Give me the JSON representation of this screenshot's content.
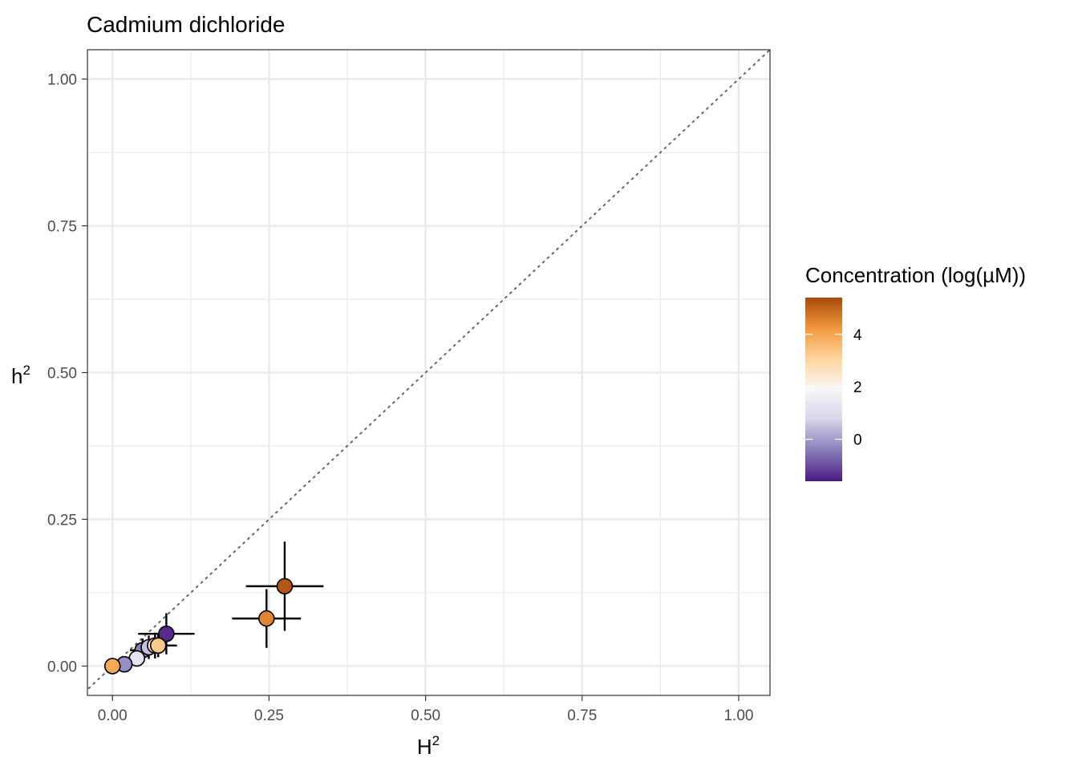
{
  "chart_data": {
    "type": "scatter",
    "title": "Cadmium dichloride",
    "xlabel": "H",
    "xlabel_sup": "2",
    "ylabel": "h",
    "ylabel_sup": "2",
    "xlim": [
      -0.04,
      1.05
    ],
    "ylim": [
      -0.05,
      1.05
    ],
    "x_ticks": [
      {
        "value": 0,
        "label": "0.00"
      },
      {
        "value": 0.25,
        "label": "0.25"
      },
      {
        "value": 0.5,
        "label": "0.50"
      },
      {
        "value": 0.75,
        "label": "0.75"
      },
      {
        "value": 1,
        "label": "1.00"
      }
    ],
    "y_ticks": [
      {
        "value": 0,
        "label": "0.00"
      },
      {
        "value": 0.25,
        "label": "0.25"
      },
      {
        "value": 0.5,
        "label": "0.50"
      },
      {
        "value": 0.75,
        "label": "0.75"
      },
      {
        "value": 1,
        "label": "1.00"
      }
    ],
    "reference_line": "y = x (dotted)",
    "grid": true,
    "points": [
      {
        "x": 0.086,
        "y": 0.055,
        "xerr": 0.045,
        "yerr": 0.035,
        "conc": -1.4
      },
      {
        "x": 0.275,
        "y": 0.136,
        "xerr": 0.062,
        "yerr": 0.076,
        "conc": 5.2
      },
      {
        "x": 0.246,
        "y": 0.081,
        "xerr": 0.055,
        "yerr": 0.05,
        "conc": 4.5
      },
      {
        "x": 0.048,
        "y": 0.027,
        "xerr": 0.02,
        "yerr": 0.02,
        "conc": -0.4
      },
      {
        "x": 0.058,
        "y": 0.032,
        "xerr": 0.022,
        "yerr": 0.02,
        "conc": 0.5
      },
      {
        "x": 0.068,
        "y": 0.035,
        "xerr": 0.03,
        "yerr": 0.022,
        "conc": 2.8
      },
      {
        "x": 0.073,
        "y": 0.035,
        "xerr": 0.03,
        "yerr": 0.02,
        "conc": 3.3
      },
      {
        "x": 0.039,
        "y": 0.013,
        "xerr": 0.01,
        "yerr": 0.01,
        "conc": 1.2
      },
      {
        "x": 0.019,
        "y": 0.003,
        "xerr": 0.005,
        "yerr": 0.005,
        "conc": -0.2
      },
      {
        "x": 0.0,
        "y": 0.0,
        "xerr": 0.0,
        "yerr": 0.0,
        "conc": 3.9
      }
    ],
    "colorbar": {
      "title": "Concentration (log(µM))",
      "range": [
        -1.6,
        5.4
      ],
      "ticks": [
        {
          "value": 4,
          "label": "4"
        },
        {
          "value": 2,
          "label": "2"
        },
        {
          "value": 0,
          "label": "0"
        }
      ],
      "stops": [
        {
          "value": -1.6,
          "color": "#4b1a80"
        },
        {
          "value": -0.4,
          "color": "#8a7fbb"
        },
        {
          "value": 0.8,
          "color": "#d9d7ea"
        },
        {
          "value": 1.9,
          "color": "#f7f7f7"
        },
        {
          "value": 3.0,
          "color": "#fed8a3"
        },
        {
          "value": 4.2,
          "color": "#f19a3e"
        },
        {
          "value": 5.4,
          "color": "#a84a0a"
        }
      ]
    },
    "colors": {
      "grid": "#ebebeb",
      "panel_border": "#333333",
      "reference_line": "#666666",
      "error_bar": "#000000",
      "axis_text": "#4d4d4d"
    }
  }
}
